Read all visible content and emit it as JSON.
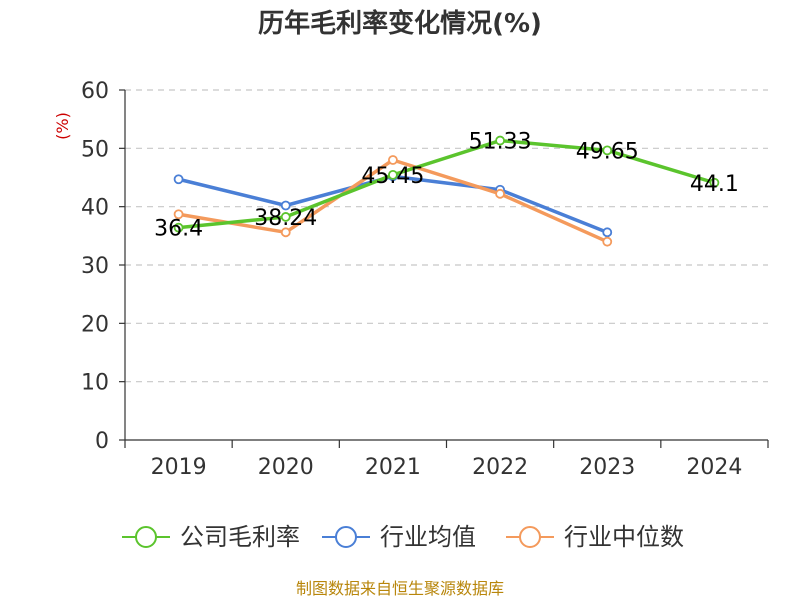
{
  "chart_data": {
    "type": "line",
    "title": "历年毛利率变化情况(%)",
    "unit_label": "(%)",
    "categories": [
      "2019",
      "2020",
      "2021",
      "2022",
      "2023",
      "2024"
    ],
    "ylim": [
      0,
      60
    ],
    "yticks": [
      0,
      10,
      20,
      30,
      40,
      50,
      60
    ],
    "grid": true,
    "legend_position": "bottom",
    "series": [
      {
        "name": "公司毛利率",
        "color": "#5bc42d",
        "values": [
          36.4,
          38.24,
          45.45,
          51.33,
          49.65,
          44.1
        ],
        "labels": [
          "36.4",
          "38.24",
          "45.45",
          "51.33",
          "49.65",
          "44.1"
        ]
      },
      {
        "name": "行业均值",
        "color": "#4a7fd6",
        "values": [
          44.7,
          40.2,
          45.2,
          42.9,
          35.6,
          null
        ]
      },
      {
        "name": "行业中位数",
        "color": "#f49a5c",
        "values": [
          38.7,
          35.6,
          48.0,
          42.2,
          34.0,
          null
        ]
      }
    ]
  },
  "source": "制图数据来自恒生聚源数据库"
}
